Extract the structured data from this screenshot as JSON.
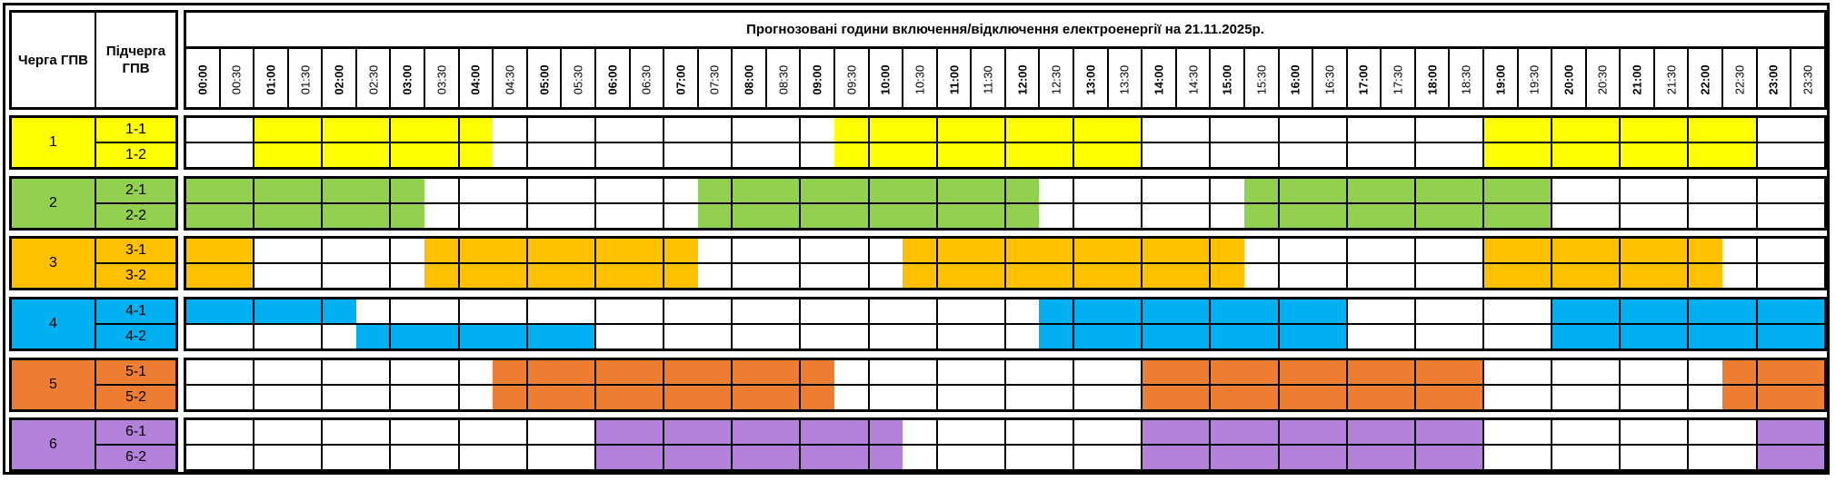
{
  "header": {
    "queue_label": "Черга ГПВ",
    "subqueue_label": "Підчерга ГПВ",
    "title": "Прогнозовані години включення/відключення електроенергії на 21.11.2025р.",
    "times": [
      "00:00",
      "00:30",
      "01:00",
      "01:30",
      "02:00",
      "02:30",
      "03:00",
      "03:30",
      "04:00",
      "04:30",
      "05:00",
      "05:30",
      "06:00",
      "06:30",
      "07:00",
      "07:30",
      "08:00",
      "08:30",
      "09:00",
      "09:30",
      "10:00",
      "10:30",
      "11:00",
      "11:30",
      "12:00",
      "12:30",
      "13:00",
      "13:30",
      "14:00",
      "14:30",
      "15:00",
      "15:30",
      "16:00",
      "16:30",
      "17:00",
      "17:30",
      "18:00",
      "18:30",
      "19:00",
      "19:30",
      "20:00",
      "20:30",
      "21:00",
      "21:30",
      "22:00",
      "22:30",
      "23:00",
      "23:30"
    ]
  },
  "groups": [
    {
      "label": "1",
      "color": "#FFFF00",
      "subgroups": [
        {
          "label": "1-1",
          "off": [
            [
              "01:00",
              "04:30"
            ],
            [
              "09:30",
              "14:00"
            ],
            [
              "19:00",
              "23:00"
            ]
          ]
        },
        {
          "label": "1-2",
          "off": [
            [
              "01:00",
              "04:30"
            ],
            [
              "09:30",
              "14:00"
            ],
            [
              "19:00",
              "23:00"
            ]
          ]
        }
      ]
    },
    {
      "label": "2",
      "color": "#92D050",
      "subgroups": [
        {
          "label": "2-1",
          "off": [
            [
              "00:00",
              "03:30"
            ],
            [
              "07:30",
              "12:30"
            ],
            [
              "15:30",
              "20:00"
            ]
          ]
        },
        {
          "label": "2-2",
          "off": [
            [
              "00:00",
              "03:30"
            ],
            [
              "07:30",
              "12:30"
            ],
            [
              "15:30",
              "20:00"
            ]
          ]
        }
      ]
    },
    {
      "label": "3",
      "color": "#FFC000",
      "subgroups": [
        {
          "label": "3-1",
          "off": [
            [
              "00:00",
              "01:00"
            ],
            [
              "03:30",
              "07:30"
            ],
            [
              "10:30",
              "15:30"
            ],
            [
              "19:00",
              "22:30"
            ]
          ]
        },
        {
          "label": "3-2",
          "off": [
            [
              "00:00",
              "01:00"
            ],
            [
              "03:30",
              "07:30"
            ],
            [
              "10:30",
              "15:30"
            ],
            [
              "19:00",
              "22:30"
            ]
          ]
        }
      ]
    },
    {
      "label": "4",
      "color": "#00B0F0",
      "subgroups": [
        {
          "label": "4-1",
          "off": [
            [
              "00:00",
              "02:30"
            ],
            [
              "12:30",
              "17:00"
            ],
            [
              "20:00",
              "24:00"
            ]
          ]
        },
        {
          "label": "4-2",
          "off": [
            [
              "02:30",
              "06:00"
            ],
            [
              "12:30",
              "17:00"
            ],
            [
              "20:00",
              "24:00"
            ]
          ]
        }
      ]
    },
    {
      "label": "5",
      "color": "#ED7D31",
      "subgroups": [
        {
          "label": "5-1",
          "off": [
            [
              "04:30",
              "09:30"
            ],
            [
              "14:00",
              "19:00"
            ],
            [
              "22:30",
              "24:00"
            ]
          ]
        },
        {
          "label": "5-2",
          "off": [
            [
              "04:30",
              "09:30"
            ],
            [
              "14:00",
              "19:00"
            ],
            [
              "22:30",
              "24:00"
            ]
          ]
        }
      ]
    },
    {
      "label": "6",
      "color": "#B381D9",
      "subgroups": [
        {
          "label": "6-1",
          "off": [
            [
              "06:00",
              "10:30"
            ],
            [
              "14:00",
              "19:00"
            ],
            [
              "23:00",
              "24:00"
            ]
          ]
        },
        {
          "label": "6-2",
          "off": [
            [
              "06:00",
              "10:30"
            ],
            [
              "14:00",
              "19:00"
            ],
            [
              "23:00",
              "24:00"
            ]
          ]
        }
      ]
    }
  ]
}
